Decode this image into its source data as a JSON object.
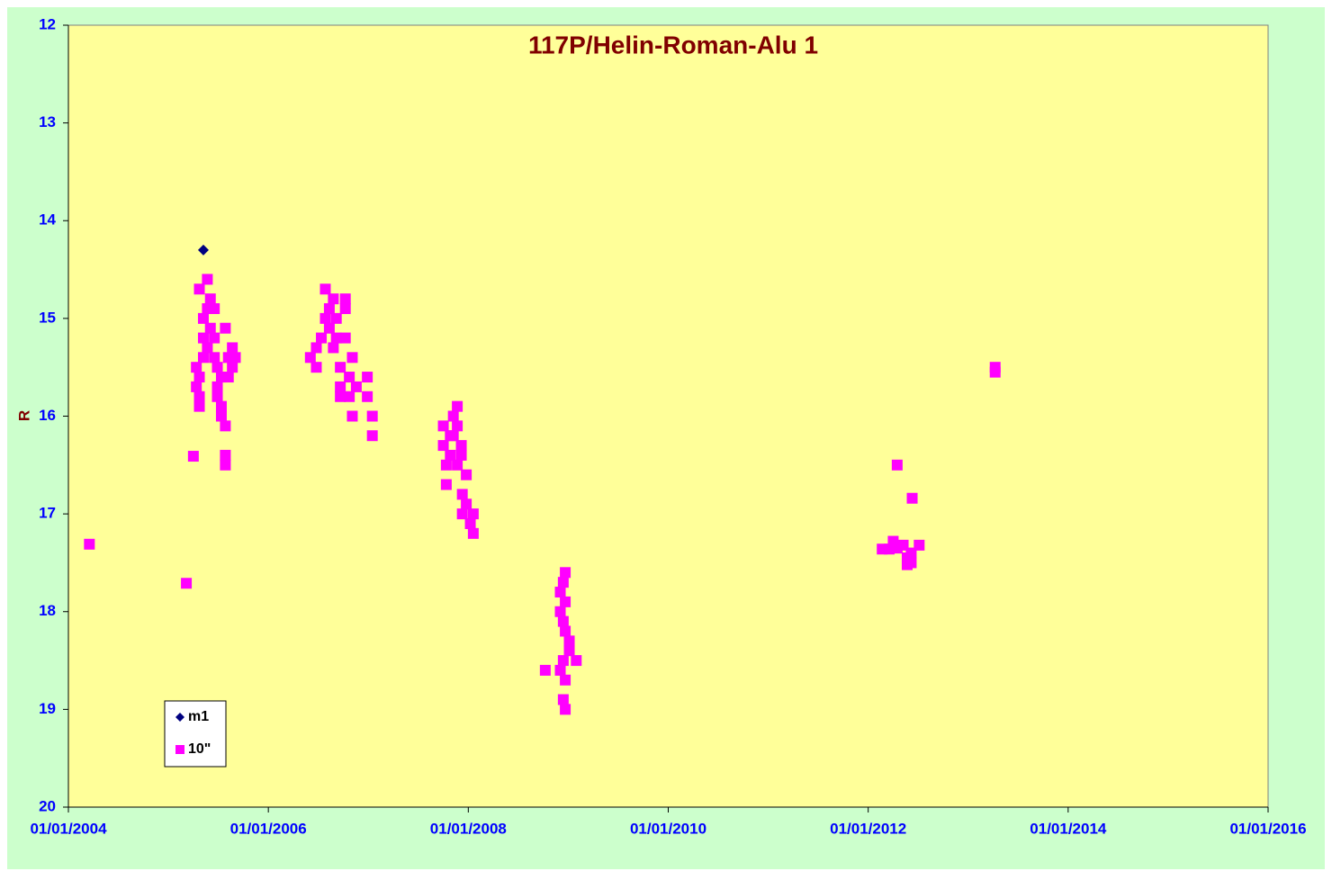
{
  "chart_data": {
    "type": "scatter",
    "title": "117P/Helin-Roman-Alu  1",
    "y_label": "R",
    "xlim": [
      2004,
      2016
    ],
    "xticks": [
      {
        "value": 2004,
        "label": "01/01/2004"
      },
      {
        "value": 2006,
        "label": "01/01/2006"
      },
      {
        "value": 2008,
        "label": "01/01/2008"
      },
      {
        "value": 2010,
        "label": "01/01/2010"
      },
      {
        "value": 2012,
        "label": "01/01/2012"
      },
      {
        "value": 2014,
        "label": "01/01/2014"
      },
      {
        "value": 2016,
        "label": "01/01/2016"
      }
    ],
    "ylim": [
      12,
      20
    ],
    "y_inverted": true,
    "yticks": [
      12,
      13,
      14,
      15,
      16,
      17,
      18,
      19,
      20
    ],
    "legend": "lower left",
    "series": [
      {
        "name": "m1",
        "color": "#000080",
        "marker": "diamond",
        "x": [
          2005.35
        ],
        "values": [
          14.3
        ]
      },
      {
        "name": "10\"",
        "color": "#ff00ff",
        "marker": "square",
        "x": [
          2004.21,
          2005.18,
          2005.25,
          2005.28,
          2005.28,
          2005.31,
          2005.31,
          2005.31,
          2005.31,
          2005.35,
          2005.35,
          2005.35,
          2005.39,
          2005.39,
          2005.39,
          2005.42,
          2005.42,
          2005.46,
          2005.46,
          2005.46,
          2005.49,
          2005.49,
          2005.49,
          2005.53,
          2005.53,
          2005.53,
          2005.57,
          2005.57,
          2005.57,
          2005.57,
          2005.6,
          2005.6,
          2005.64,
          2005.64,
          2005.67,
          2006.42,
          2006.48,
          2006.48,
          2006.53,
          2006.57,
          2006.57,
          2006.61,
          2006.61,
          2006.65,
          2006.65,
          2006.68,
          2006.68,
          2006.72,
          2006.72,
          2006.72,
          2006.77,
          2006.77,
          2006.77,
          2006.81,
          2006.81,
          2006.84,
          2006.84,
          2006.88,
          2006.99,
          2006.99,
          2007.04,
          2007.04,
          2007.75,
          2007.75,
          2007.78,
          2007.78,
          2007.82,
          2007.82,
          2007.85,
          2007.85,
          2007.89,
          2007.89,
          2007.89,
          2007.93,
          2007.93,
          2007.94,
          2007.94,
          2007.98,
          2007.98,
          2008.02,
          2008.05,
          2008.05,
          2008.77,
          2008.92,
          2008.92,
          2008.92,
          2008.95,
          2008.95,
          2008.95,
          2008.95,
          2008.97,
          2008.97,
          2008.97,
          2008.97,
          2008.97,
          2009.01,
          2009.01,
          2009.08,
          2012.14,
          2012.21,
          2012.25,
          2012.29,
          2012.29,
          2012.35,
          2012.39,
          2012.39,
          2012.43,
          2012.43,
          2012.44,
          2012.51,
          2013.27,
          2013.27
        ],
        "values": [
          17.31,
          17.71,
          16.41,
          15.5,
          15.7,
          14.7,
          15.6,
          15.8,
          15.9,
          15.0,
          15.2,
          15.4,
          14.6,
          14.9,
          15.3,
          14.8,
          15.1,
          14.9,
          15.2,
          15.4,
          15.5,
          15.7,
          15.8,
          15.6,
          15.9,
          16.0,
          15.1,
          16.1,
          16.4,
          16.5,
          15.4,
          15.6,
          15.3,
          15.5,
          15.4,
          15.4,
          15.5,
          15.3,
          15.2,
          15.0,
          14.7,
          14.9,
          15.1,
          14.8,
          15.3,
          15.0,
          15.2,
          15.5,
          15.7,
          15.8,
          15.2,
          14.8,
          14.9,
          15.6,
          15.8,
          16.0,
          15.4,
          15.7,
          15.6,
          15.8,
          16.0,
          16.2,
          16.1,
          16.3,
          16.5,
          16.7,
          16.2,
          16.4,
          16.0,
          16.2,
          15.9,
          16.1,
          16.5,
          16.3,
          16.4,
          16.8,
          17.0,
          16.6,
          16.9,
          17.1,
          17.0,
          17.2,
          18.6,
          17.8,
          18.0,
          18.6,
          17.7,
          18.1,
          18.5,
          18.9,
          17.6,
          17.9,
          18.2,
          18.7,
          19.0,
          18.3,
          18.4,
          18.5,
          17.36,
          17.36,
          17.28,
          16.5,
          17.35,
          17.32,
          17.45,
          17.52,
          17.5,
          17.4,
          16.84,
          17.32,
          15.5,
          15.55
        ]
      }
    ]
  }
}
